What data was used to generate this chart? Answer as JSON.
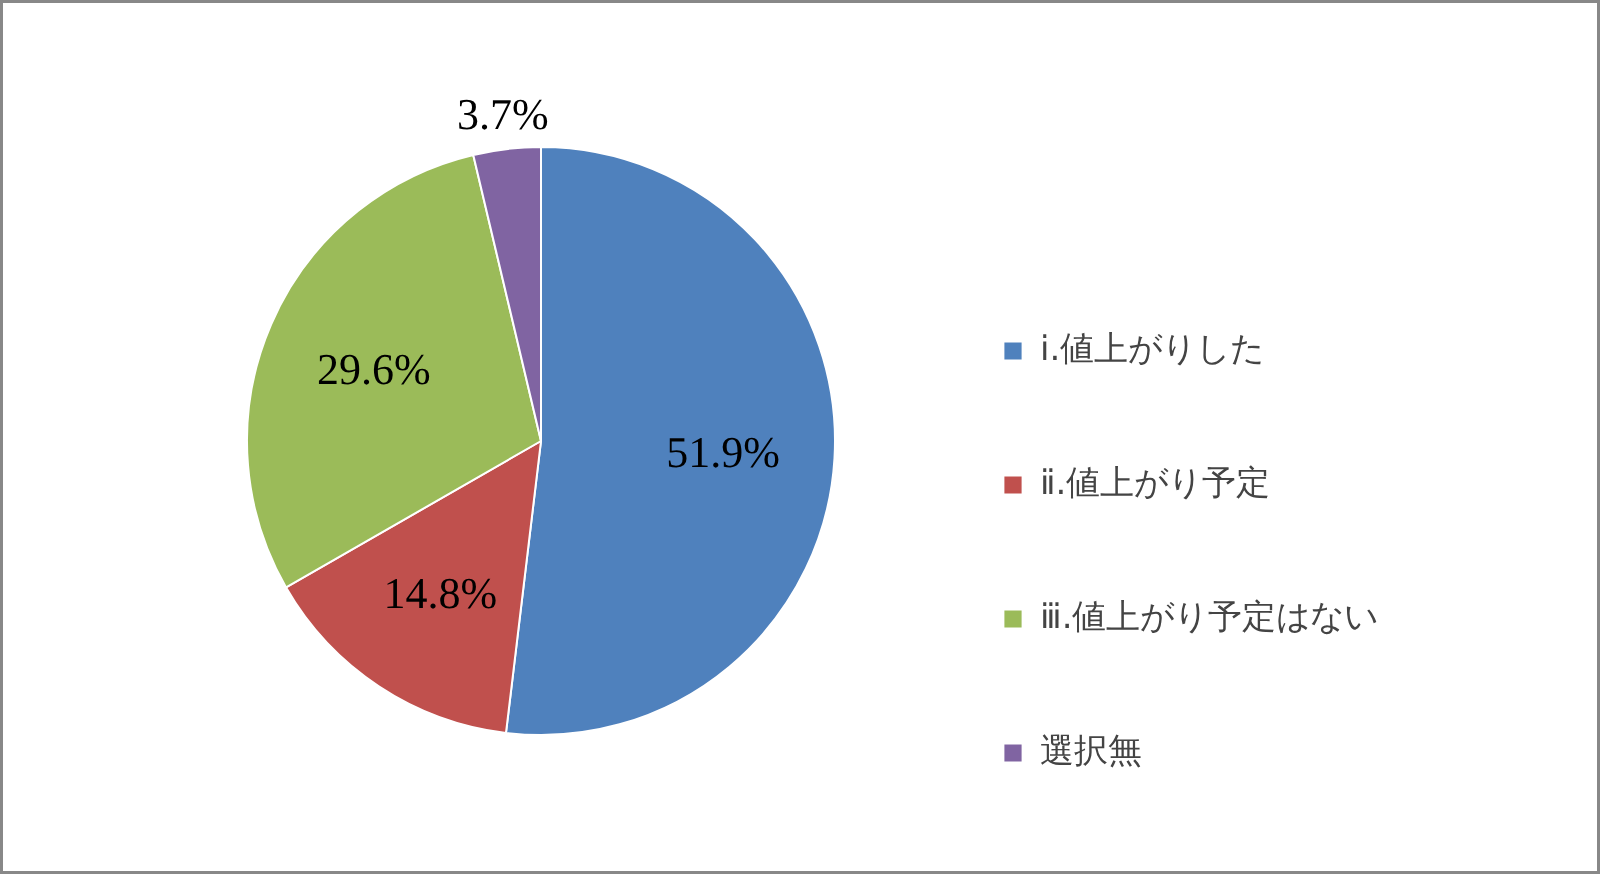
{
  "chart_data": {
    "type": "pie",
    "categories": [
      "ⅰ.値上がりした",
      "ⅱ.値上がり予定",
      "ⅲ.値上がり予定はない",
      "選択無"
    ],
    "values": [
      51.9,
      14.8,
      29.6,
      3.7
    ],
    "colors": [
      "#4f81bd",
      "#c0504d",
      "#9bbb59",
      "#8064a2"
    ],
    "value_labels": [
      "51.9%",
      "14.8%",
      "29.6%",
      "3.7%"
    ],
    "legend": "right"
  }
}
